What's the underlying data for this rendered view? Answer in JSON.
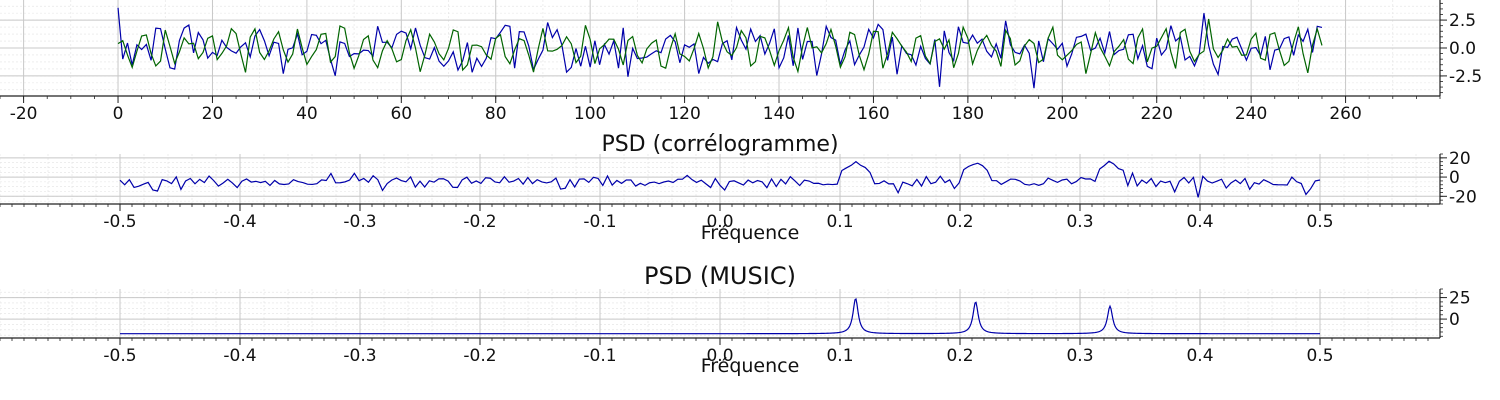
{
  "colors": {
    "series_blue": "#0000aa",
    "series_green": "#006400",
    "grid_major": "#c8c8c8",
    "grid_minor": "#e2e2e2",
    "axis": "#222222"
  },
  "chart_data": [
    {
      "type": "line",
      "title": "",
      "xlabel": "",
      "ylabel": "",
      "xlim": [
        -25,
        280
      ],
      "ylim": [
        -4.3,
        4.3
      ],
      "xticks": [
        -20,
        0,
        20,
        40,
        60,
        80,
        100,
        120,
        140,
        160,
        180,
        200,
        220,
        240,
        260
      ],
      "xtick_labels": [
        "-20",
        "0",
        "20",
        "40",
        "60",
        "80",
        "100",
        "120",
        "140",
        "160",
        "180",
        "200",
        "220",
        "240",
        "260"
      ],
      "yticks": [
        -2.5,
        0,
        2.5
      ],
      "ytick_labels": [
        "-2.5",
        "0.0",
        "2.5"
      ],
      "grid": true,
      "y_axis_side": "right",
      "x_range": [
        0,
        255
      ],
      "series": [
        {
          "color": "#0000aa",
          "points": 256,
          "approx_amplitude": 3.6
        },
        {
          "color": "#006400",
          "points": 256,
          "approx_amplitude": 2.6
        }
      ]
    },
    {
      "type": "line",
      "title": "PSD (corrélogramme)",
      "xlabel": "Fréquence",
      "ylabel": "",
      "xlim": [
        -0.6,
        0.6
      ],
      "ylim": [
        -28,
        24
      ],
      "xticks": [
        -0.5,
        -0.4,
        -0.3,
        -0.2,
        -0.1,
        0.0,
        0.1,
        0.2,
        0.3,
        0.4,
        0.5
      ],
      "xtick_labels": [
        "-0.5",
        "-0.4",
        "-0.3",
        "-0.2",
        "-0.1",
        "0.0",
        "0.1",
        "0.2",
        "0.3",
        "0.4",
        "0.5"
      ],
      "yticks": [
        -20,
        0,
        20
      ],
      "ytick_labels": [
        "-20",
        "0",
        "20"
      ],
      "grid": true,
      "y_axis_side": "right",
      "series": [
        {
          "color": "#0000aa",
          "x_range": [
            -0.5,
            0.5
          ],
          "baseline": -5,
          "peaks_at": [
            0.113,
            0.213,
            0.325
          ],
          "peak_values": [
            16,
            17,
            16
          ]
        }
      ]
    },
    {
      "type": "line",
      "title": "PSD (MUSIC)",
      "xlabel": "Fréquence",
      "ylabel": "",
      "xlim": [
        -0.6,
        0.6
      ],
      "ylim": [
        -22,
        35
      ],
      "xticks": [
        -0.5,
        -0.4,
        -0.3,
        -0.2,
        -0.1,
        0.0,
        0.1,
        0.2,
        0.3,
        0.4,
        0.5
      ],
      "xtick_labels": [
        "-0.5",
        "-0.4",
        "-0.3",
        "-0.2",
        "-0.1",
        "0.0",
        "0.1",
        "0.2",
        "0.3",
        "0.4",
        "0.5"
      ],
      "yticks": [
        0,
        25
      ],
      "ytick_labels": [
        "0",
        "25"
      ],
      "grid": true,
      "y_axis_side": "right",
      "series": [
        {
          "color": "#0000aa",
          "x_range": [
            -0.5,
            0.5
          ],
          "baseline": -17,
          "peaks_at": [
            0.113,
            0.213,
            0.325
          ],
          "peak_values": [
            24,
            20,
            15
          ]
        }
      ]
    }
  ]
}
